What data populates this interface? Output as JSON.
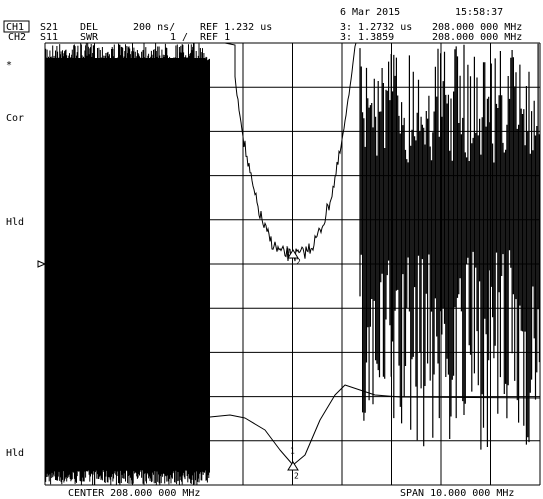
{
  "header": {
    "date": "6 Mar 2015",
    "time": "15:58:37",
    "channels": [
      {
        "label": "CH1",
        "param": "S21",
        "format": "DEL",
        "scale": "200 ns/",
        "ref": "REF 1.232 us",
        "marker": "3: 1.2732 us",
        "freq": "208.000 000 MHz"
      },
      {
        "label": "CH2",
        "param": "S11",
        "format": "SWR",
        "scale": "1 /",
        "ref": "REF 1",
        "marker": "3: 1.3859",
        "freq": "208.000 000 MHz"
      }
    ]
  },
  "side_labels": [
    "*",
    "Cor",
    "Hld",
    "Hld"
  ],
  "markers": [
    "1",
    "2",
    "1",
    "2"
  ],
  "footer": {
    "center": "CENTER 208.000 000 MHz",
    "span": "SPAN 10.000 000 MHz"
  }
}
